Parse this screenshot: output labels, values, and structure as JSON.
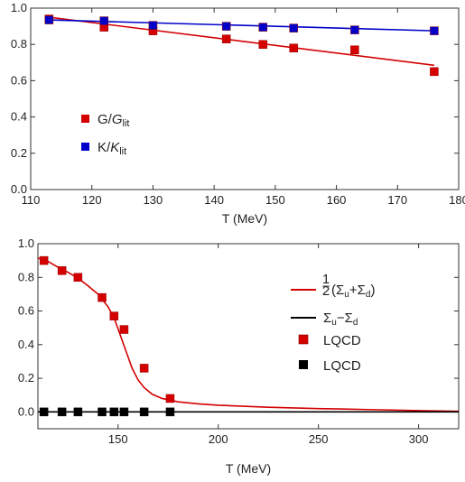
{
  "colors": {
    "red": "#d40000",
    "blue": "#0000c8",
    "black": "#000000"
  },
  "chart_data": [
    {
      "type": "scatter",
      "title": "",
      "xlabel": "T (MeV)",
      "ylabel": "",
      "xlim": [
        110,
        180
      ],
      "ylim": [
        0.0,
        1.0
      ],
      "xticks": [
        110,
        120,
        130,
        140,
        150,
        160,
        170,
        180
      ],
      "yticks": [
        0.0,
        0.2,
        0.4,
        0.6,
        0.8,
        1.0
      ],
      "xtick_labels": [
        "110",
        "120",
        "130",
        "140",
        "150",
        "160",
        "170",
        "180"
      ],
      "ytick_labels": [
        "0.0",
        "0.2",
        "0.4",
        "0.6",
        "0.8",
        "1.0"
      ],
      "legend_position": "center-left",
      "series": [
        {
          "name": "G/G_lit",
          "legend_main": "G/",
          "legend_italic": "G",
          "legend_sub": "lit",
          "color": "#d40000",
          "marker": "square",
          "points": [
            [
              113,
              0.94
            ],
            [
              122,
              0.895
            ],
            [
              130,
              0.875
            ],
            [
              142,
              0.83
            ],
            [
              148,
              0.8
            ],
            [
              153,
              0.78
            ],
            [
              163,
              0.77
            ],
            [
              176,
              0.65
            ]
          ],
          "fit_line": [
            [
              113,
              0.95
            ],
            [
              176,
              0.685
            ]
          ]
        },
        {
          "name": "K/K_lit",
          "legend_main": "K/",
          "legend_italic": "K",
          "legend_sub": "lit",
          "color": "#0000c8",
          "marker": "square",
          "points": [
            [
              113,
              0.935
            ],
            [
              122,
              0.93
            ],
            [
              130,
              0.905
            ],
            [
              142,
              0.9
            ],
            [
              148,
              0.895
            ],
            [
              153,
              0.89
            ],
            [
              163,
              0.88
            ],
            [
              176,
              0.875
            ]
          ],
          "fit_line": [
            [
              113,
              0.935
            ],
            [
              176,
              0.875
            ]
          ]
        }
      ]
    },
    {
      "type": "line",
      "title": "",
      "xlabel": "T (MeV)",
      "ylabel": "",
      "xlim": [
        110,
        320
      ],
      "ylim": [
        -0.1,
        1.0
      ],
      "xticks": [
        150,
        200,
        250,
        300
      ],
      "yticks": [
        0.0,
        0.2,
        0.4,
        0.6,
        0.8,
        1.0
      ],
      "xtick_labels": [
        "150",
        "200",
        "250",
        "300"
      ],
      "ytick_labels": [
        "0.0",
        "0.2",
        "0.4",
        "0.6",
        "0.8",
        "1.0"
      ],
      "legend_position": "right",
      "series": [
        {
          "name": "½(Σu+Σd)",
          "color": "#d40000",
          "style": "line",
          "curve": [
            [
              110,
              0.915
            ],
            [
              115,
              0.895
            ],
            [
              120,
              0.86
            ],
            [
              125,
              0.83
            ],
            [
              130,
              0.795
            ],
            [
              135,
              0.75
            ],
            [
              140,
              0.7
            ],
            [
              145,
              0.625
            ],
            [
              148,
              0.56
            ],
            [
              151,
              0.46
            ],
            [
              154,
              0.36
            ],
            [
              157,
              0.26
            ],
            [
              160,
              0.19
            ],
            [
              163,
              0.145
            ],
            [
              167,
              0.105
            ],
            [
              172,
              0.08
            ],
            [
              180,
              0.06
            ],
            [
              190,
              0.048
            ],
            [
              200,
              0.04
            ],
            [
              225,
              0.028
            ],
            [
              250,
              0.02
            ],
            [
              275,
              0.014
            ],
            [
              300,
              0.008
            ],
            [
              320,
              0.004
            ]
          ]
        },
        {
          "name": "Σu−Σd",
          "color": "#000000",
          "style": "line",
          "curve": [
            [
              110,
              0.0
            ],
            [
              320,
              0.0
            ]
          ]
        },
        {
          "name": "LQCD",
          "color": "#d40000",
          "style": "marker",
          "points": [
            [
              113,
              0.9
            ],
            [
              122,
              0.84
            ],
            [
              130,
              0.8
            ],
            [
              142,
              0.68
            ],
            [
              148,
              0.57
            ],
            [
              153,
              0.49
            ],
            [
              163,
              0.26
            ],
            [
              176,
              0.08
            ]
          ]
        },
        {
          "name": "LQCD",
          "color": "#000000",
          "style": "marker",
          "points": [
            [
              113,
              0.0
            ],
            [
              122,
              0.0
            ],
            [
              130,
              0.0
            ],
            [
              142,
              0.0
            ],
            [
              148,
              0.0
            ],
            [
              153,
              0.0
            ],
            [
              163,
              0.0
            ],
            [
              176,
              0.0
            ]
          ]
        }
      ],
      "legend": {
        "line1_frac_num": "1",
        "line1_frac_den": "2",
        "line1_text": "(Σ",
        "line1_sub_a": "u",
        "line1_plus": "+Σ",
        "line1_sub_b": "d",
        "line1_close": ")",
        "line2_text": "Σ",
        "line2_sub_a": "u",
        "line2_minus": "−Σ",
        "line2_sub_b": "d",
        "line3_text": "LQCD",
        "line4_text": "LQCD"
      }
    }
  ]
}
